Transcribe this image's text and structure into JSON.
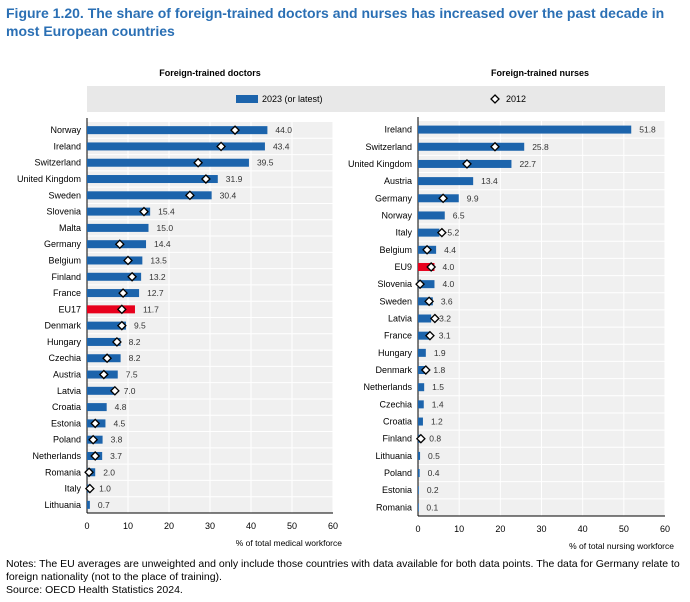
{
  "title": "Figure 1.20. The share of foreign-trained doctors and nurses has increased over the past decade in most European countries",
  "notes": "Notes: The EU averages are unweighted and only include those countries with data available for both data points. The data for Germany relate to foreign nationality (not to the place of training).",
  "source": "Source: OECD Health Statistics 2024.",
  "colors": {
    "bar": "#1c64ac",
    "eu": "#e8001c",
    "plot_bg": "#f0f0f0",
    "legend_bg": "#e8e8e8"
  },
  "chart_data": [
    {
      "type": "bar",
      "orientation": "horizontal",
      "title": "Foreign-trained doctors",
      "xlabel": "% of total medical workforce",
      "xlim": [
        0,
        60
      ],
      "ticks": [
        0,
        10,
        20,
        30,
        40,
        50,
        60
      ],
      "grid": true,
      "legend": {
        "placement": "top",
        "entries": [
          "2023 (or latest)",
          "2012"
        ]
      },
      "categories": [
        "Norway",
        "Ireland",
        "Switzerland",
        "United Kingdom",
        "Sweden",
        "Slovenia",
        "Malta",
        "Germany",
        "Belgium",
        "Finland",
        "France",
        "EU17",
        "Denmark",
        "Hungary",
        "Czechia",
        "Austria",
        "Latvia",
        "Croatia",
        "Estonia",
        "Poland",
        "Netherlands",
        "Romania",
        "Italy",
        "Lithuania"
      ],
      "series": [
        {
          "name": "2023 (or latest)",
          "values": [
            44.0,
            43.4,
            39.5,
            31.9,
            30.4,
            15.4,
            15.0,
            14.4,
            13.5,
            13.2,
            12.7,
            11.7,
            9.5,
            8.2,
            8.2,
            7.5,
            7.0,
            4.8,
            4.5,
            3.8,
            3.7,
            2.0,
            1.0,
            0.7
          ],
          "labels": [
            "44.0",
            "43.4",
            "39.5",
            "31.9",
            "30.4",
            "15.4",
            "15.0",
            "14.4",
            "13.5",
            "13.2",
            "12.7",
            "11.7",
            "9.5",
            "8.2",
            "8.2",
            "7.5",
            "7.0",
            "4.8",
            "4.5",
            "3.8",
            "3.7",
            "2.0",
            "1.0",
            "0.7"
          ]
        },
        {
          "name": "2012",
          "values": [
            36.1,
            32.7,
            27.1,
            29.0,
            25.1,
            13.9,
            null,
            8.0,
            10.0,
            11.0,
            8.8,
            8.5,
            8.5,
            7.3,
            4.9,
            4.1,
            6.8,
            null,
            2.0,
            1.5,
            2.0,
            0.5,
            0.7,
            null
          ]
        }
      ],
      "highlight": "EU17"
    },
    {
      "type": "bar",
      "orientation": "horizontal",
      "title": "Foreign-trained nurses",
      "xlabel": "% of total nursing workforce",
      "xlim": [
        0,
        60
      ],
      "ticks": [
        0,
        10,
        20,
        30,
        40,
        50,
        60
      ],
      "grid": true,
      "categories": [
        "Ireland",
        "Switzerland",
        "United Kingdom",
        "Austria",
        "Germany",
        "Norway",
        "Italy",
        "Belgium",
        "EU9",
        "Slovenia",
        "Sweden",
        "Latvia",
        "France",
        "Hungary",
        "Denmark",
        "Netherlands",
        "Czechia",
        "Croatia",
        "Finland",
        "Lithuania",
        "Poland",
        "Estonia",
        "Romania"
      ],
      "series": [
        {
          "name": "2023 (or latest)",
          "values": [
            51.8,
            25.8,
            22.7,
            13.4,
            9.9,
            6.5,
            5.2,
            4.4,
            4.0,
            4.0,
            3.6,
            3.2,
            3.1,
            1.9,
            1.8,
            1.5,
            1.4,
            1.2,
            0.8,
            0.5,
            0.4,
            0.2,
            0.1
          ],
          "labels": [
            "51.8",
            "25.8",
            "22.7",
            "13.4",
            "9.9",
            "6.5",
            "5.2",
            "4.4",
            "4.0",
            "4.0",
            "3.6",
            "3.2",
            "3.1",
            "1.9",
            "1.8",
            "1.5",
            "1.4",
            "1.2",
            "0.8",
            "0.5",
            "0.4",
            "0.2",
            "0.1"
          ]
        },
        {
          "name": "2012",
          "values": [
            null,
            18.7,
            11.9,
            null,
            6.1,
            null,
            5.8,
            2.2,
            3.2,
            0.5,
            2.7,
            4.1,
            2.9,
            null,
            1.9,
            null,
            null,
            null,
            0.7,
            null,
            null,
            null,
            null
          ]
        }
      ],
      "highlight": "EU9"
    }
  ]
}
